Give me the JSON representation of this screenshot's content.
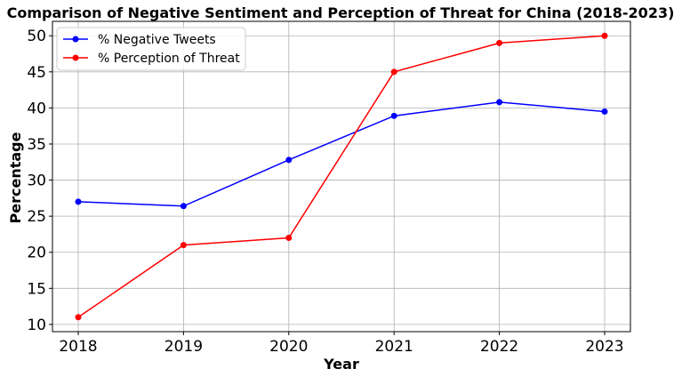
{
  "chart_data": {
    "type": "line",
    "title": "Comparison of Negative Sentiment and Perception of Threat for China (2018-2023)",
    "xlabel": "Year",
    "ylabel": "Percentage",
    "categories": [
      "2018",
      "2019",
      "2020",
      "2021",
      "2022",
      "2023"
    ],
    "yticks": [
      10,
      15,
      20,
      25,
      30,
      35,
      40,
      45,
      50
    ],
    "ylim": [
      9,
      52
    ],
    "grid": true,
    "legend_position": "top-left",
    "series": [
      {
        "name": "% Negative Tweets",
        "color": "#0000ff",
        "marker": "circle",
        "values": [
          27.0,
          26.4,
          32.8,
          38.9,
          40.8,
          39.5
        ]
      },
      {
        "name": "% Perception of Threat",
        "color": "#ff0000",
        "marker": "circle",
        "values": [
          11,
          21,
          22,
          45,
          49,
          50
        ]
      }
    ]
  }
}
